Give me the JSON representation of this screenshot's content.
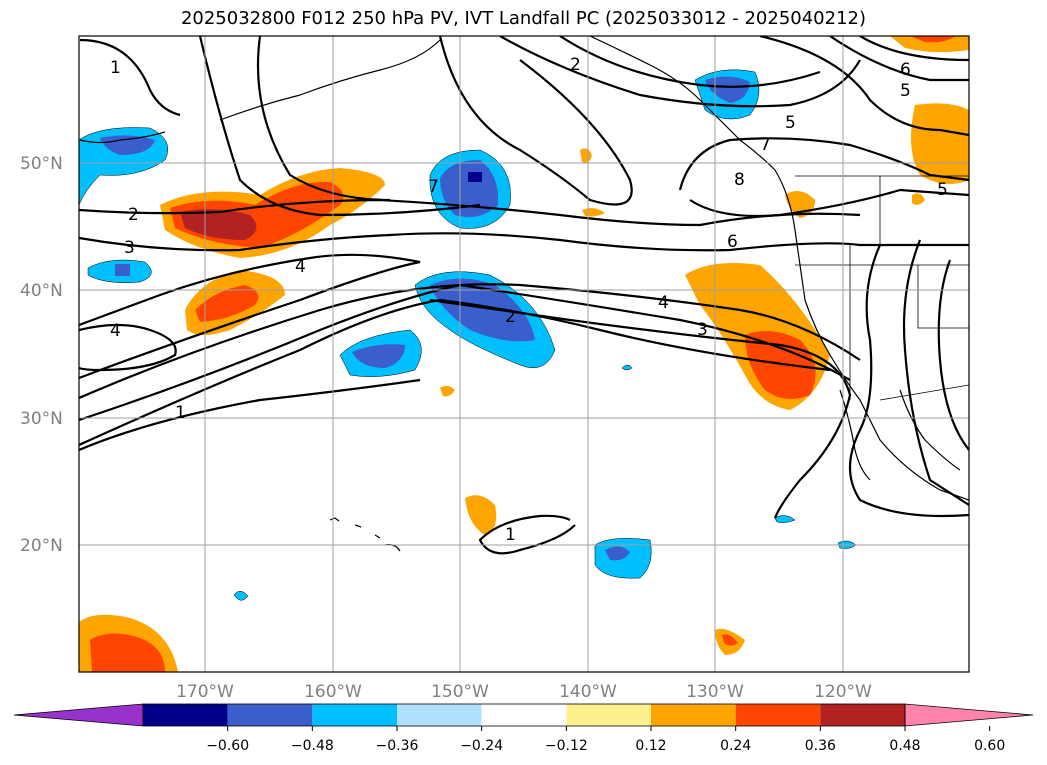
{
  "title": "2025032800 F012 250 hPa PV, IVT Landfall PC (2025033012 - 2025040212)",
  "lat_labels": [
    "50°N",
    "40°N",
    "30°N",
    "20°N"
  ],
  "lon_labels": [
    "170°W",
    "160°W",
    "150°W",
    "140°W",
    "130°W",
    "120°W"
  ],
  "colorbar": {
    "ticks": [
      "−0.60",
      "−0.48",
      "−0.36",
      "−0.24",
      "−0.12",
      "0.12",
      "0.24",
      "0.36",
      "0.48",
      "0.60"
    ],
    "colors": [
      "#9932cc",
      "#00008b",
      "#3a5fcd",
      "#00bfff",
      "#b0e2ff",
      "#ffffff",
      "#fff08f",
      "#ffa500",
      "#ff4500",
      "#b22222",
      "#ff83aa"
    ]
  },
  "contour_labels": [
    "1",
    "2",
    "3",
    "4",
    "5",
    "6",
    "7",
    "8"
  ]
}
